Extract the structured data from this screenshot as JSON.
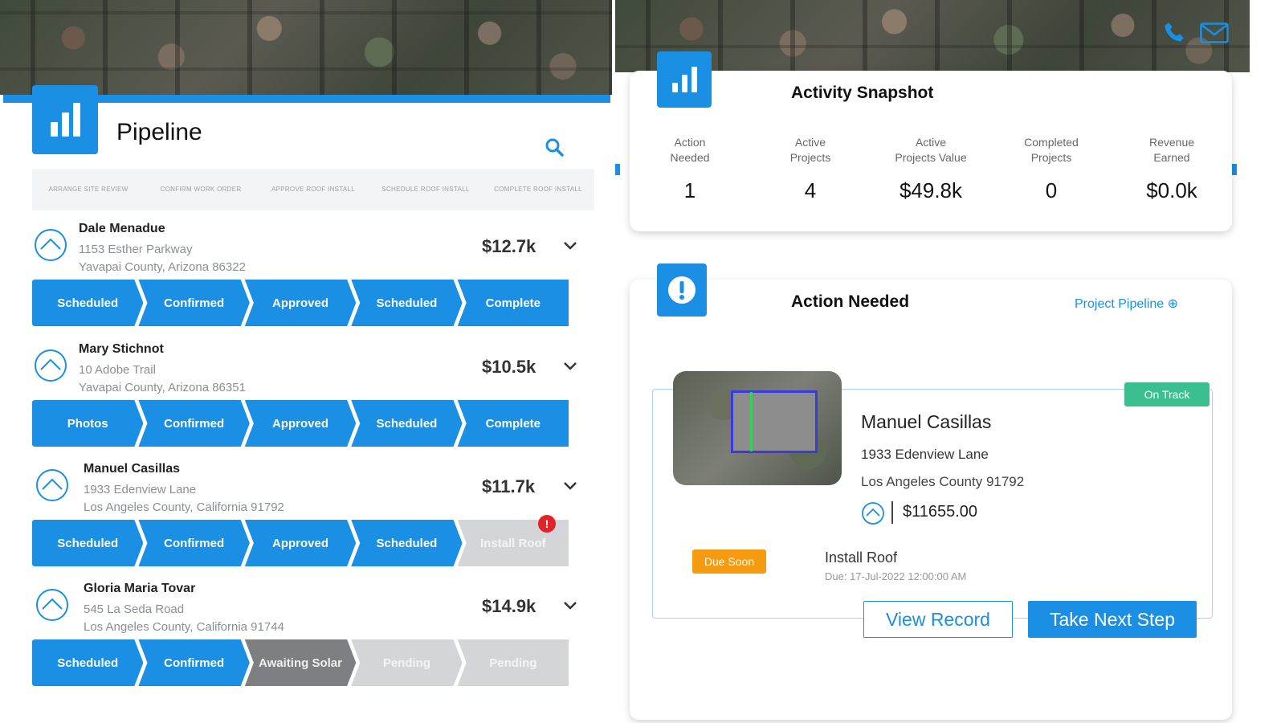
{
  "colors": {
    "primary": "#1a8fe3",
    "on_track": "#3bbf8f",
    "due_soon": "#f59b12",
    "alert": "#e0242a",
    "pending": "#d3d5d8",
    "awaiting": "#7d7f82"
  },
  "pipeline": {
    "title": "Pipeline",
    "stage_headers": [
      "ARRANGE SITE REVIEW",
      "CONFIRM WORK ORDER",
      "APPROVE ROOF INSTALL",
      "SCHEDULE ROOF INSTALL",
      "COMPLETE ROOF INSTALL"
    ],
    "projects": [
      {
        "name": "Dale Menadue",
        "address": "1153 Esther Parkway",
        "county": "Yavapai County, Arizona 86322",
        "amount": "$12.7k",
        "steps": [
          {
            "label": "Scheduled",
            "state": "blue"
          },
          {
            "label": "Confirmed",
            "state": "blue"
          },
          {
            "label": "Approved",
            "state": "blue"
          },
          {
            "label": "Scheduled",
            "state": "blue"
          },
          {
            "label": "Complete",
            "state": "blue"
          }
        ]
      },
      {
        "name": "Mary Stichnot",
        "address": "10 Adobe Trail",
        "county": "Yavapai County, Arizona 86351",
        "amount": "$10.5k",
        "steps": [
          {
            "label": "Photos",
            "state": "blue"
          },
          {
            "label": "Confirmed",
            "state": "blue"
          },
          {
            "label": "Approved",
            "state": "blue"
          },
          {
            "label": "Scheduled",
            "state": "blue"
          },
          {
            "label": "Complete",
            "state": "blue"
          }
        ]
      },
      {
        "name": "Manuel Casillas",
        "address": "1933 Edenview Lane",
        "county": "Los Angeles County, California 91792",
        "amount": "$11.7k",
        "alert": "!",
        "steps": [
          {
            "label": "Scheduled",
            "state": "blue"
          },
          {
            "label": "Confirmed",
            "state": "blue"
          },
          {
            "label": "Approved",
            "state": "blue"
          },
          {
            "label": "Scheduled",
            "state": "blue"
          },
          {
            "label": "Install Roof",
            "state": "grey"
          }
        ]
      },
      {
        "name": "Gloria Maria Tovar",
        "address": "545 La Seda Road",
        "county": "Los Angeles County, California 91744",
        "amount": "$14.9k",
        "steps": [
          {
            "label": "Scheduled",
            "state": "blue"
          },
          {
            "label": "Confirmed",
            "state": "blue"
          },
          {
            "label": "Awaiting Solar",
            "state": "dark"
          },
          {
            "label": "Pending",
            "state": "grey"
          },
          {
            "label": "Pending",
            "state": "grey"
          }
        ]
      }
    ]
  },
  "snapshot": {
    "title": "Activity Snapshot",
    "stats": [
      {
        "label_1": "Action",
        "label_2": "Needed",
        "value": "1"
      },
      {
        "label_1": "Active",
        "label_2": "Projects",
        "value": "4"
      },
      {
        "label_1": "Active",
        "label_2": "Projects Value",
        "value": "$49.8k"
      },
      {
        "label_1": "Completed",
        "label_2": "Projects",
        "value": "0"
      },
      {
        "label_1": "Revenue",
        "label_2": "Earned",
        "value": "$0.0k"
      }
    ]
  },
  "action": {
    "title": "Action Needed",
    "link": "Project Pipeline ⊕",
    "record": {
      "status": "On Track",
      "name": "Manuel Casillas",
      "address": "1933 Edenview Lane",
      "county": "Los Angeles County 91792",
      "amount": "$11655.00",
      "due_badge": "Due Soon",
      "task": "Install Roof",
      "task_due": "Due: 17-Jul-2022 12:00:00 AM"
    },
    "view_record": "View Record",
    "take_next_step": "Take Next Step"
  }
}
